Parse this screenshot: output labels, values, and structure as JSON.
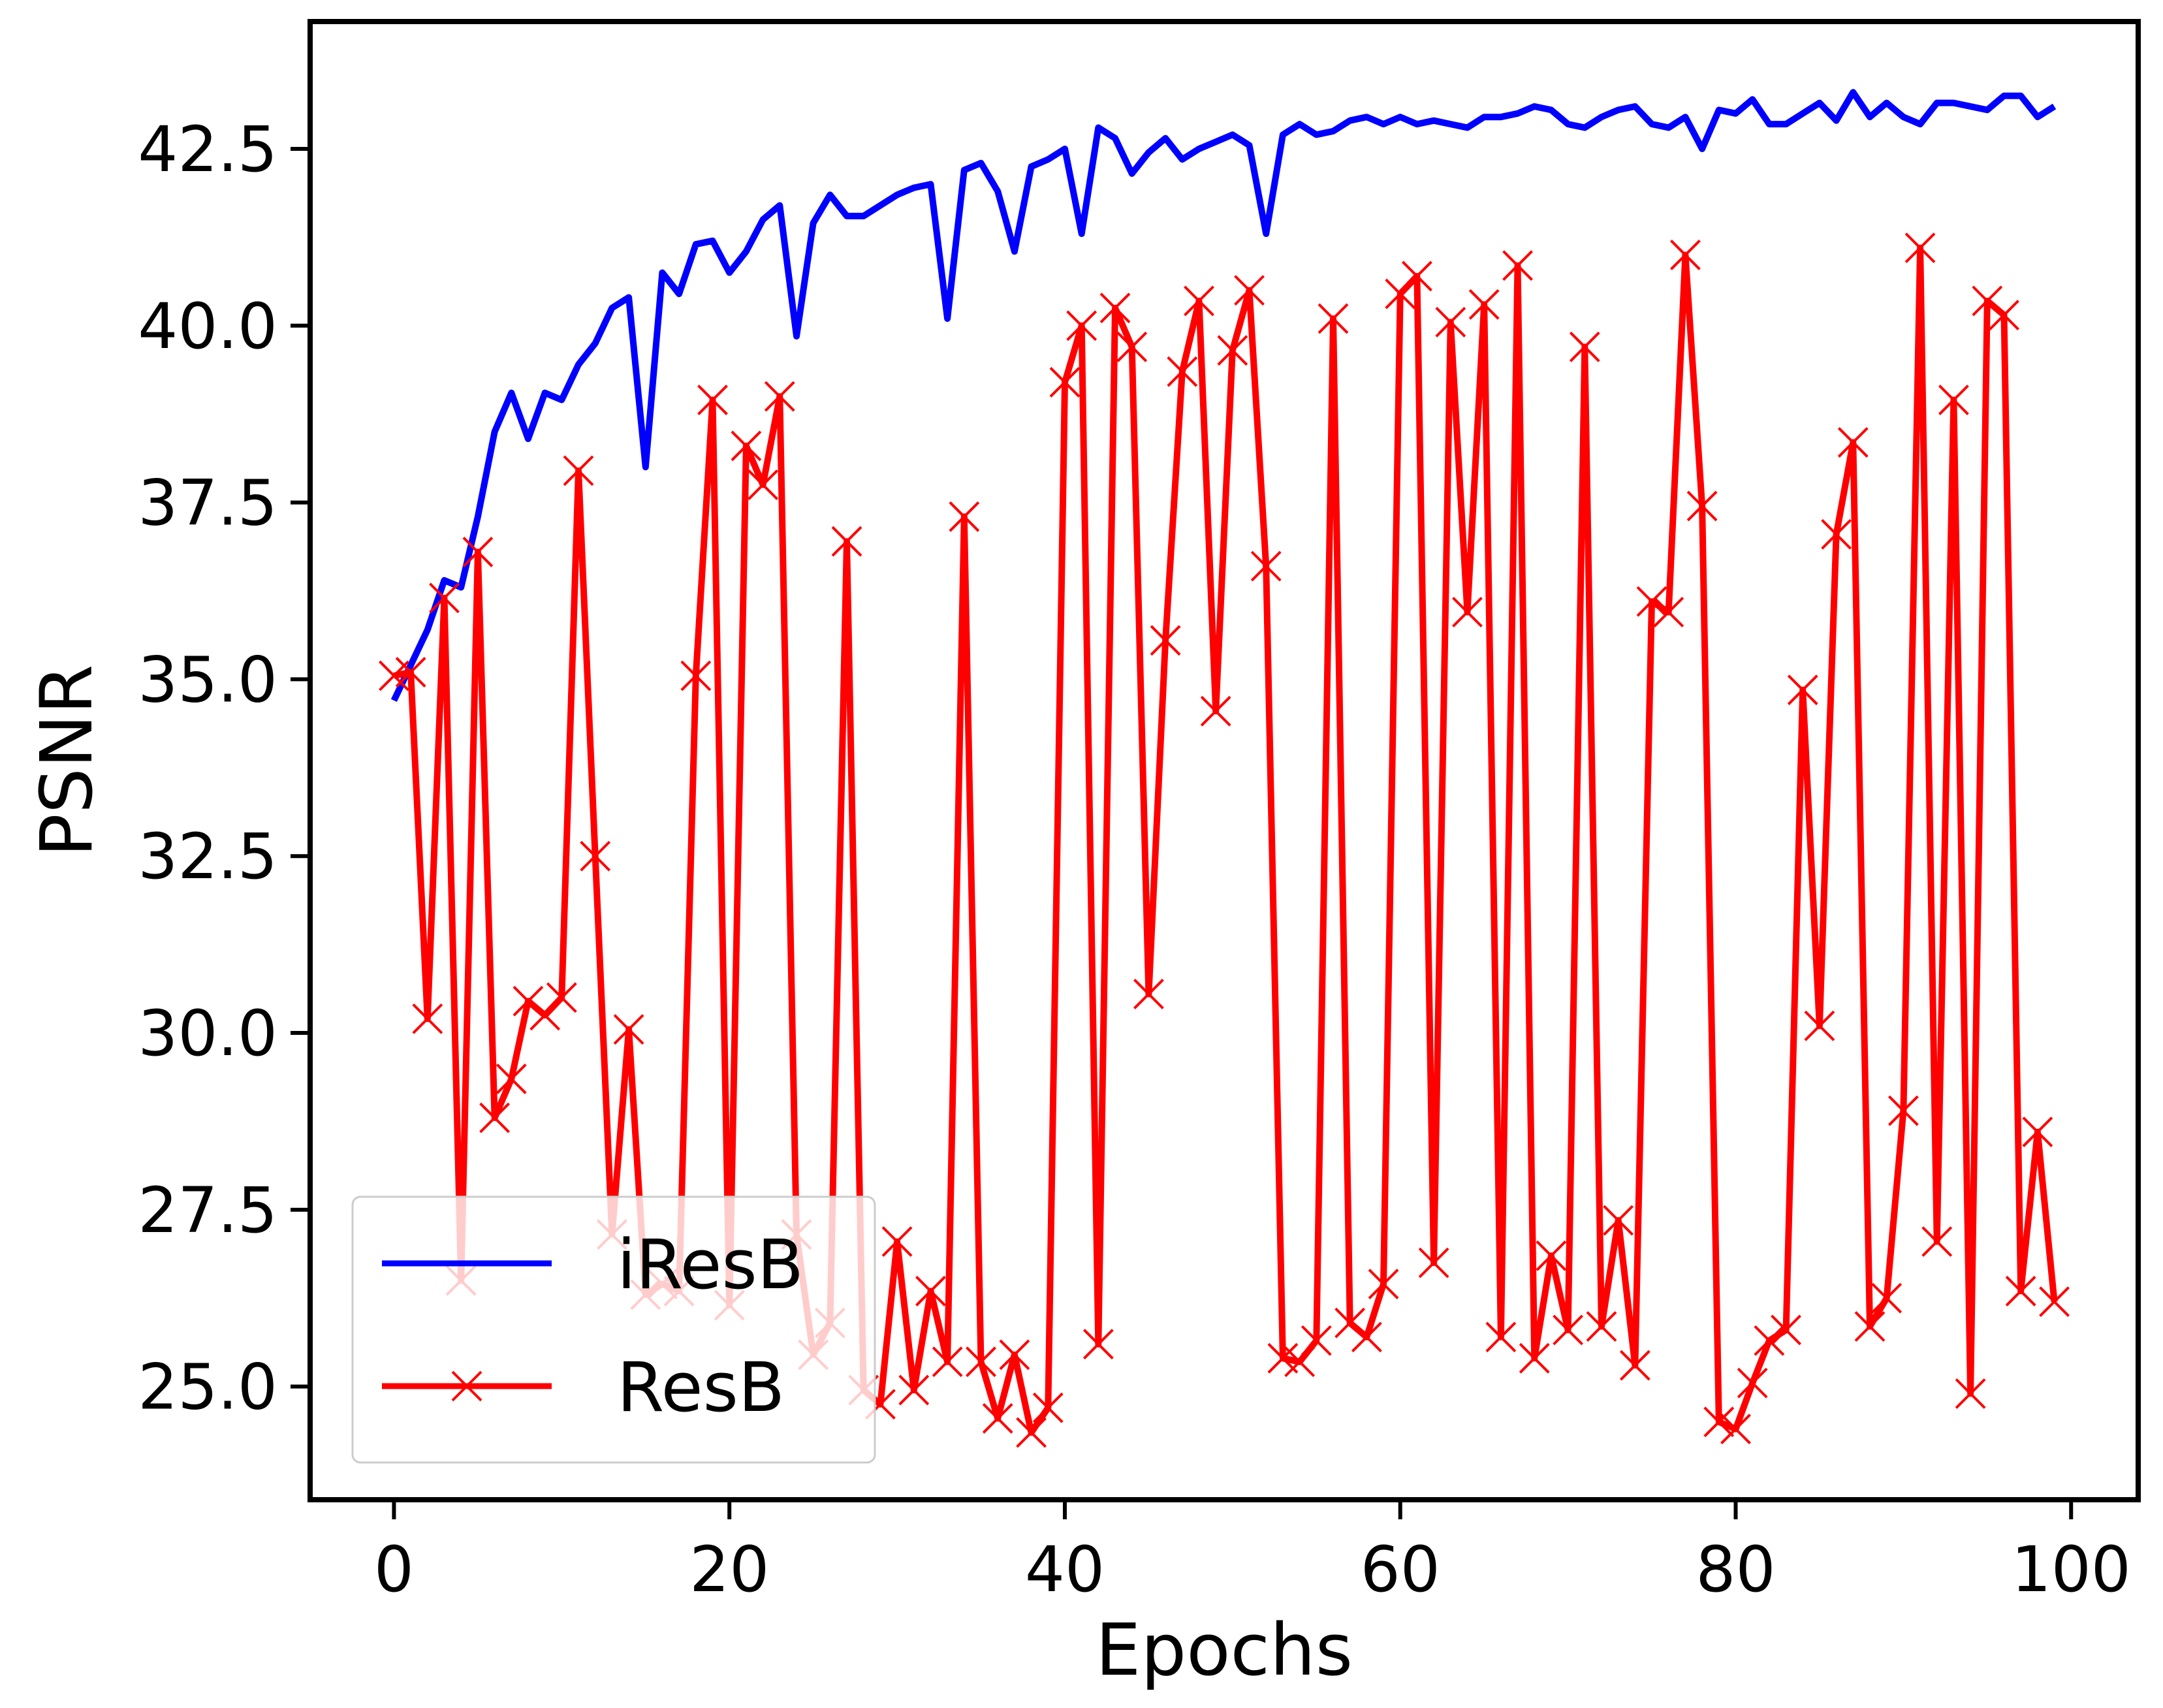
{
  "chart_data": {
    "type": "line",
    "xlabel": "Epochs",
    "ylabel": "PSNR",
    "xlim": [
      -5,
      104
    ],
    "ylim": [
      23.4,
      44.3
    ],
    "xticks": [
      0,
      20,
      40,
      60,
      80,
      100
    ],
    "xtick_labels": [
      "0",
      "20",
      "40",
      "60",
      "80",
      "100"
    ],
    "yticks": [
      25.0,
      27.5,
      30.0,
      32.5,
      35.0,
      37.5,
      40.0,
      42.5
    ],
    "ytick_labels": [
      "25.0",
      "27.5",
      "30.0",
      "32.5",
      "35.0",
      "37.5",
      "40.0",
      "42.5"
    ],
    "grid": false,
    "legend_position": "lower-left",
    "x": [
      0,
      1,
      2,
      3,
      4,
      5,
      6,
      7,
      8,
      9,
      10,
      11,
      12,
      13,
      14,
      15,
      16,
      17,
      18,
      19,
      20,
      21,
      22,
      23,
      24,
      25,
      26,
      27,
      28,
      29,
      30,
      31,
      32,
      33,
      34,
      35,
      36,
      37,
      38,
      39,
      40,
      41,
      42,
      43,
      44,
      45,
      46,
      47,
      48,
      49,
      50,
      51,
      52,
      53,
      54,
      55,
      56,
      57,
      58,
      59,
      60,
      61,
      62,
      63,
      64,
      65,
      66,
      67,
      68,
      69,
      70,
      71,
      72,
      73,
      74,
      75,
      76,
      77,
      78,
      79,
      80,
      81,
      82,
      83,
      84,
      85,
      86,
      87,
      88,
      89,
      90,
      91,
      92,
      93,
      94,
      95,
      96,
      97,
      98,
      99
    ],
    "series": [
      {
        "name": "iResB",
        "color": "#0000ff",
        "marker": "none",
        "values": [
          34.7,
          35.2,
          35.7,
          36.4,
          36.3,
          37.3,
          38.5,
          39.05,
          38.4,
          39.05,
          38.95,
          39.45,
          39.75,
          40.25,
          40.4,
          38.0,
          40.75,
          40.45,
          41.15,
          41.2,
          40.75,
          41.05,
          41.5,
          41.7,
          39.85,
          41.45,
          41.85,
          41.55,
          41.55,
          41.7,
          41.85,
          41.95,
          42.0,
          40.1,
          42.2,
          42.3,
          41.9,
          41.05,
          42.25,
          42.35,
          42.5,
          41.3,
          42.8,
          42.65,
          42.15,
          42.45,
          42.65,
          42.35,
          42.5,
          42.6,
          42.7,
          42.55,
          41.3,
          42.7,
          42.85,
          42.7,
          42.75,
          42.9,
          42.95,
          42.85,
          42.95,
          42.85,
          42.9,
          42.85,
          42.8,
          42.95,
          42.95,
          43.0,
          43.1,
          43.05,
          42.85,
          42.8,
          42.95,
          43.05,
          43.1,
          42.85,
          42.8,
          42.95,
          42.5,
          43.05,
          43.0,
          43.2,
          42.85,
          42.85,
          43.0,
          43.15,
          42.9,
          43.3,
          42.95,
          43.15,
          42.95,
          42.85,
          43.15,
          43.15,
          43.1,
          43.05,
          43.25,
          43.25,
          42.95,
          43.1
        ]
      },
      {
        "name": "ResB",
        "color": "#ff0000",
        "marker": "x",
        "values": [
          35.05,
          35.1,
          30.2,
          36.15,
          26.5,
          36.8,
          28.8,
          29.35,
          30.45,
          30.25,
          30.5,
          37.95,
          32.5,
          27.15,
          30.05,
          26.3,
          26.45,
          26.35,
          35.05,
          38.95,
          26.15,
          38.3,
          37.75,
          39.0,
          27.15,
          25.45,
          25.9,
          36.95,
          24.95,
          24.75,
          27.05,
          24.95,
          26.35,
          25.35,
          37.3,
          25.35,
          24.55,
          25.45,
          24.35,
          24.7,
          39.2,
          40.0,
          25.6,
          40.25,
          39.7,
          30.55,
          35.55,
          39.35,
          40.35,
          34.55,
          39.65,
          40.5,
          36.6,
          25.4,
          25.35,
          25.65,
          40.1,
          25.9,
          25.7,
          26.45,
          40.45,
          40.7,
          26.75,
          40.05,
          35.95,
          40.3,
          25.7,
          40.85,
          25.4,
          26.85,
          25.8,
          39.7,
          25.85,
          27.35,
          25.3,
          36.1,
          35.95,
          41.0,
          37.45,
          24.5,
          24.4,
          25.05,
          25.65,
          25.8,
          34.85,
          30.1,
          37.05,
          38.35,
          25.85,
          26.25,
          28.9,
          41.1,
          27.05,
          38.95,
          24.9,
          40.35,
          40.15,
          26.35,
          28.6,
          26.2
        ]
      }
    ]
  }
}
